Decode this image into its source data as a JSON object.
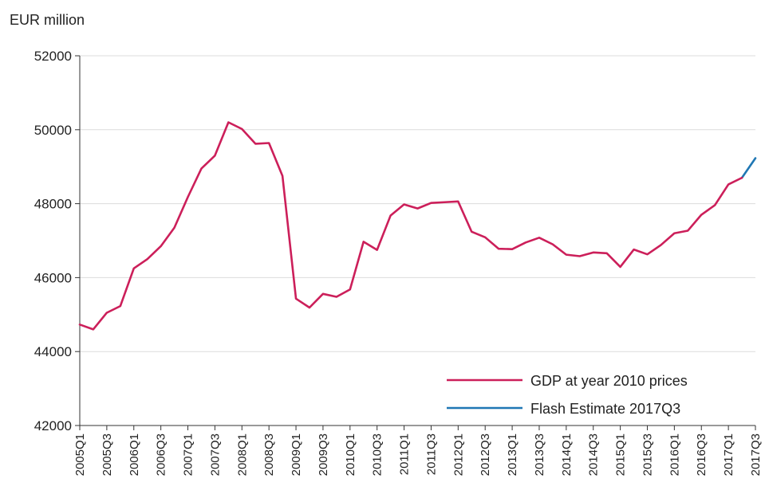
{
  "chart_data": {
    "type": "line",
    "title": "",
    "ylabel": "EUR million",
    "xlabel": "",
    "ylim": [
      42000,
      52000
    ],
    "yticks": [
      42000,
      44000,
      46000,
      48000,
      50000,
      52000
    ],
    "grid": true,
    "legend_placement": "bottom-right",
    "x": [
      "2005Q1",
      "2005Q2",
      "2005Q3",
      "2005Q4",
      "2006Q1",
      "2006Q2",
      "2006Q3",
      "2006Q4",
      "2007Q1",
      "2007Q2",
      "2007Q3",
      "2007Q4",
      "2008Q1",
      "2008Q2",
      "2008Q3",
      "2008Q4",
      "2009Q1",
      "2009Q2",
      "2009Q3",
      "2009Q4",
      "2010Q1",
      "2010Q2",
      "2010Q3",
      "2010Q4",
      "2011Q1",
      "2011Q2",
      "2011Q3",
      "2011Q4",
      "2012Q1",
      "2012Q2",
      "2012Q3",
      "2012Q4",
      "2013Q1",
      "2013Q2",
      "2013Q3",
      "2013Q4",
      "2014Q1",
      "2014Q2",
      "2014Q3",
      "2014Q4",
      "2015Q1",
      "2015Q2",
      "2015Q3",
      "2015Q4",
      "2016Q1",
      "2016Q2",
      "2016Q3",
      "2016Q4",
      "2017Q1",
      "2017Q2",
      "2017Q3"
    ],
    "xtick_labels": [
      "2005Q1",
      "2005Q3",
      "2006Q1",
      "2006Q3",
      "2007Q1",
      "2007Q3",
      "2008Q1",
      "2008Q3",
      "2009Q1",
      "2009Q3",
      "2010Q1",
      "2010Q3",
      "2011Q1",
      "2011Q3",
      "2012Q1",
      "2012Q3",
      "2013Q1",
      "2013Q3",
      "2014Q1",
      "2014Q3",
      "2015Q1",
      "2015Q3",
      "2016Q1",
      "2016Q3",
      "2017Q1",
      "2017Q3"
    ],
    "series": [
      {
        "name": "GDP at year 2010 prices",
        "color": "#cc1f5a",
        "x": [
          "2005Q1",
          "2005Q2",
          "2005Q3",
          "2005Q4",
          "2006Q1",
          "2006Q2",
          "2006Q3",
          "2006Q4",
          "2007Q1",
          "2007Q2",
          "2007Q3",
          "2007Q4",
          "2008Q1",
          "2008Q2",
          "2008Q3",
          "2008Q4",
          "2009Q1",
          "2009Q2",
          "2009Q3",
          "2009Q4",
          "2010Q1",
          "2010Q2",
          "2010Q3",
          "2010Q4",
          "2011Q1",
          "2011Q2",
          "2011Q3",
          "2011Q4",
          "2012Q1",
          "2012Q2",
          "2012Q3",
          "2012Q4",
          "2013Q1",
          "2013Q2",
          "2013Q3",
          "2013Q4",
          "2014Q1",
          "2014Q2",
          "2014Q3",
          "2014Q4",
          "2015Q1",
          "2015Q2",
          "2015Q3",
          "2015Q4",
          "2016Q1",
          "2016Q2",
          "2016Q3",
          "2016Q4",
          "2017Q1",
          "2017Q2"
        ],
        "values": [
          44730,
          44600,
          45050,
          45230,
          46250,
          46500,
          46850,
          47350,
          48180,
          48950,
          49300,
          50200,
          50020,
          49620,
          49640,
          48750,
          45430,
          45190,
          45560,
          45480,
          45680,
          46970,
          46750,
          47680,
          47980,
          47870,
          48020,
          48040,
          48060,
          47240,
          47090,
          46780,
          46770,
          46950,
          47080,
          46900,
          46620,
          46580,
          46680,
          46660,
          46290,
          46760,
          46630,
          46880,
          47200,
          47270,
          47700,
          47960,
          48520,
          48700
        ]
      },
      {
        "name": "Flash Estimate 2017Q3",
        "color": "#1f77b4",
        "x": [
          "2017Q2",
          "2017Q3"
        ],
        "values": [
          48700,
          49230
        ]
      }
    ]
  }
}
